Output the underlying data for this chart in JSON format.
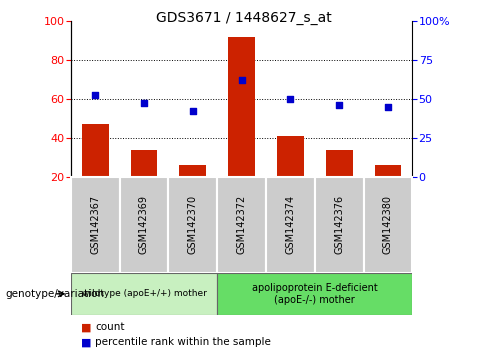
{
  "title": "GDS3671 / 1448627_s_at",
  "categories": [
    "GSM142367",
    "GSM142369",
    "GSM142370",
    "GSM142372",
    "GSM142374",
    "GSM142376",
    "GSM142380"
  ],
  "bar_values": [
    47,
    34,
    26,
    92,
    41,
    34,
    26
  ],
  "dot_values": [
    62,
    58,
    54,
    70,
    60,
    57,
    56
  ],
  "bar_color": "#cc2200",
  "dot_color": "#0000cc",
  "ylim_left": [
    20,
    100
  ],
  "ylim_right": [
    0,
    100
  ],
  "yticks_left": [
    20,
    40,
    60,
    80,
    100
  ],
  "yticks_right": [
    0,
    25,
    50,
    75,
    100
  ],
  "ytick_labels_right": [
    "0",
    "25",
    "50",
    "75",
    "100%"
  ],
  "grid_lines": [
    40,
    60,
    80
  ],
  "group1_label": "wildtype (apoE+/+) mother",
  "group2_label": "apolipoprotein E-deficient\n(apoE-/-) mother",
  "group1_indices": [
    0,
    1,
    2
  ],
  "group2_indices": [
    3,
    4,
    5,
    6
  ],
  "group1_color": "#c8f0c0",
  "group2_color": "#66dd66",
  "label_box_color": "#cccccc",
  "xlabel_left": "genotype/variation",
  "legend_count": "count",
  "legend_pct": "percentile rank within the sample",
  "bar_bottom": 20
}
